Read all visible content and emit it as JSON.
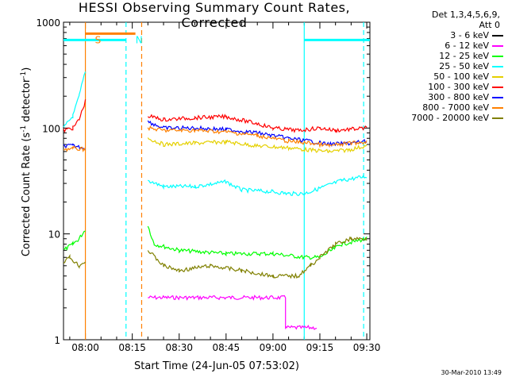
{
  "chart_data": {
    "type": "line",
    "title": "HESSI Observing Summary Count Rates, Corrected",
    "xlabel": "Start Time (24-Jun-05 07:53:02)",
    "ylabel": "Corrected Count Rate (s",
    "ylabel_sup1": "-1",
    "ylabel_mid": " detector",
    "ylabel_sup2": "-1",
    "ylabel_end": ")",
    "y_scale": "log",
    "ylim": [
      1,
      1000
    ],
    "xlim": [
      "07:53",
      "09:31"
    ],
    "x_ticks": [
      "08:00",
      "08:15",
      "08:30",
      "08:45",
      "09:00",
      "09:15",
      "09:30"
    ],
    "y_ticks": [
      "1",
      "10",
      "100",
      "1000"
    ],
    "grid": false,
    "legend_position": "right",
    "legend_header": [
      "Det 1,3,4,5,6,9,",
      "Att 0"
    ],
    "annotations": [
      {
        "text": "S",
        "time": "08:00",
        "color": "#ff8000"
      },
      {
        "text": "N",
        "time": "08:13",
        "color": "#00ffff"
      }
    ],
    "footer": "30-Mar-2010 13:49",
    "series": [
      {
        "name": "3 - 6 keV",
        "color": "#000000",
        "segments": []
      },
      {
        "name": "6 - 12 keV",
        "color": "#ff00ff",
        "segments": [
          {
            "x": [
              "08:20",
              "09:04",
              "09:04",
              "09:14"
            ],
            "y": [
              2.5,
              2.5,
              1.3,
              1.3
            ]
          }
        ]
      },
      {
        "name": "12 - 25 keV",
        "color": "#00ff00",
        "segments": [
          {
            "x": [
              "07:53",
              "07:56",
              "07:58",
              "08:00"
            ],
            "y": [
              7,
              8,
              9,
              11
            ]
          },
          {
            "x": [
              "08:20",
              "08:22",
              "08:30",
              "08:45",
              "09:00",
              "09:10",
              "09:15",
              "09:22",
              "09:30"
            ],
            "y": [
              12,
              8,
              7,
              6.5,
              6.5,
              6,
              6,
              8,
              9
            ]
          }
        ]
      },
      {
        "name": "25 - 50 keV",
        "color": "#00ffff",
        "segments": [
          {
            "x": [
              "07:53",
              "07:56",
              "07:58",
              "08:00"
            ],
            "y": [
              100,
              130,
              200,
              350
            ]
          },
          {
            "x": [
              "08:20",
              "08:25",
              "08:35",
              "08:45",
              "08:50",
              "09:00",
              "09:05",
              "09:10",
              "09:15",
              "09:22",
              "09:30"
            ],
            "y": [
              32,
              28,
              28,
              31,
              26,
              25,
              24,
              24,
              27,
              32,
              35
            ]
          }
        ]
      },
      {
        "name": "50 - 100 keV",
        "color": "#e5d000",
        "segments": [
          {
            "x": [
              "08:20",
              "08:25",
              "08:35",
              "08:45",
              "08:55",
              "09:05",
              "09:12",
              "09:18",
              "09:24",
              "09:30"
            ],
            "y": [
              80,
              70,
              72,
              74,
              68,
              65,
              62,
              60,
              62,
              68
            ]
          }
        ]
      },
      {
        "name": "100 - 300 keV",
        "color": "#ff0000",
        "segments": [
          {
            "x": [
              "07:53",
              "07:56",
              "07:58",
              "08:00"
            ],
            "y": [
              95,
              100,
              120,
              180
            ]
          },
          {
            "x": [
              "08:20",
              "08:25",
              "08:35",
              "08:45",
              "08:55",
              "09:00",
              "09:08",
              "09:15",
              "09:20",
              "09:30"
            ],
            "y": [
              130,
              120,
              125,
              128,
              110,
              100,
              95,
              100,
              95,
              100
            ]
          }
        ]
      },
      {
        "name": "300 - 800 keV",
        "color": "#0000ff",
        "segments": [
          {
            "x": [
              "07:53",
              "07:56",
              "08:00"
            ],
            "y": [
              68,
              68,
              65
            ]
          },
          {
            "x": [
              "08:20",
              "08:25",
              "08:35",
              "08:45",
              "08:55",
              "09:05",
              "09:12",
              "09:18",
              "09:25",
              "09:30"
            ],
            "y": [
              115,
              100,
              100,
              97,
              90,
              80,
              75,
              70,
              72,
              75
            ]
          }
        ]
      },
      {
        "name": "800 - 7000 keV",
        "color": "#ff8000",
        "segments": [
          {
            "x": [
              "07:53",
              "07:56",
              "08:00"
            ],
            "y": [
              63,
              64,
              63
            ]
          },
          {
            "x": [
              "08:20",
              "08:25",
              "08:35",
              "08:45",
              "08:55",
              "09:05",
              "09:12",
              "09:18",
              "09:25",
              "09:30"
            ],
            "y": [
              100,
              95,
              95,
              92,
              85,
              75,
              72,
              68,
              72,
              74
            ]
          }
        ]
      },
      {
        "name": "7000 - 20000 keV",
        "color": "#808000",
        "segments": [
          {
            "x": [
              "07:53",
              "07:55",
              "07:58",
              "08:00"
            ],
            "y": [
              5.5,
              6,
              5,
              5.5
            ]
          },
          {
            "x": [
              "08:20",
              "08:25",
              "08:30",
              "08:40",
              "08:50",
              "09:00",
              "09:08",
              "09:12",
              "09:15",
              "09:20",
              "09:25",
              "09:30"
            ],
            "y": [
              7,
              5,
              4.5,
              5,
              4.5,
              4,
              4,
              5,
              6,
              8,
              9,
              9
            ]
          }
        ]
      }
    ],
    "flag_bars": [
      {
        "label": "S",
        "color": "#ff8000",
        "x": [
          "08:00",
          "08:16"
        ],
        "y": 780
      },
      {
        "label": "",
        "color": "#00ffff",
        "x": [
          "07:53",
          "08:13"
        ],
        "y": 680
      },
      {
        "label": "",
        "color": "#00ffff",
        "x": [
          "09:10",
          "09:31"
        ],
        "y": 680
      }
    ],
    "vertical_markers": [
      {
        "time": "08:00",
        "color": "#ff8000",
        "style": "solid"
      },
      {
        "time": "08:13",
        "color": "#00ffff",
        "style": "dashed"
      },
      {
        "time": "08:18",
        "color": "#ff8000",
        "style": "dashed"
      },
      {
        "time": "09:10",
        "color": "#00ffff",
        "style": "solid"
      },
      {
        "time": "09:29",
        "color": "#00ffff",
        "style": "dashed"
      }
    ]
  }
}
